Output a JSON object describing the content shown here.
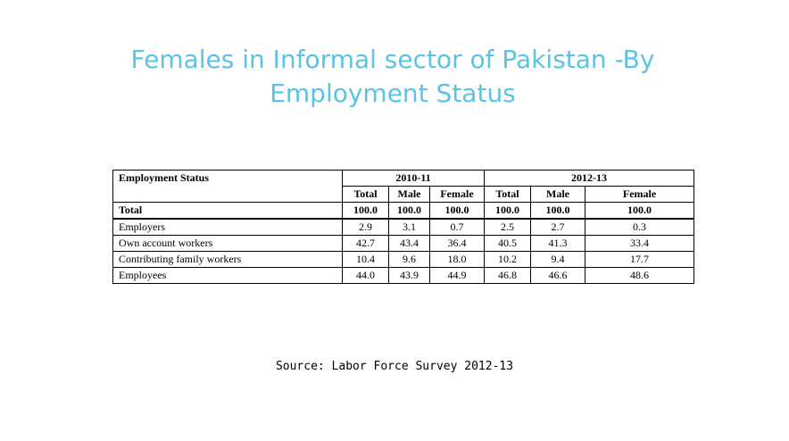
{
  "title": "Females in Informal sector of Pakistan -By Employment Status",
  "table": {
    "header_label": "Employment Status",
    "periods": [
      "2010-11",
      "2012-13"
    ],
    "subcolumns": [
      "Total",
      "Male",
      "Female",
      "Total",
      "Male",
      "Female"
    ],
    "total_row": {
      "label": "Total",
      "values": [
        "100.0",
        "100.0",
        "100.0",
        "100.0",
        "100.0",
        "100.0"
      ]
    },
    "rows": [
      {
        "label": "Employers",
        "values": [
          "2.9",
          "3.1",
          "0.7",
          "2.5",
          "2.7",
          "0.3"
        ]
      },
      {
        "label": "Own account workers",
        "values": [
          "42.7",
          "43.4",
          "36.4",
          "40.5",
          "41.3",
          "33.4"
        ]
      },
      {
        "label": "Contributing family workers",
        "values": [
          "10.4",
          "9.6",
          "18.0",
          "10.2",
          "9.4",
          "17.7"
        ]
      },
      {
        "label": "Employees",
        "values": [
          "44.0",
          "43.9",
          "44.9",
          "46.8",
          "46.6",
          "48.6"
        ]
      }
    ]
  },
  "source": "Source: Labor Force Survey 2012-13",
  "colors": {
    "title": "#5bc3e4",
    "text": "#000000",
    "background": "#ffffff"
  }
}
